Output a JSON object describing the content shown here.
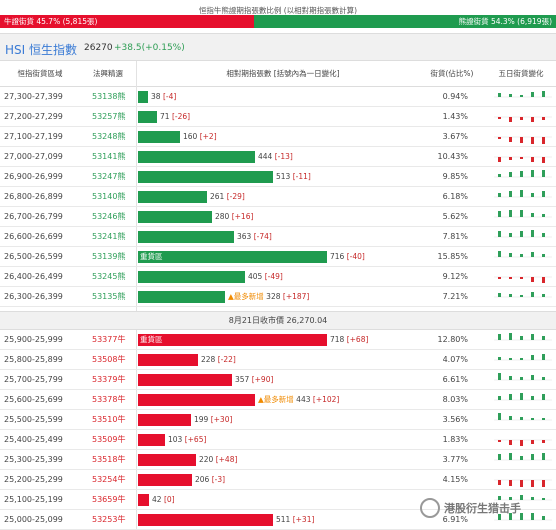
{
  "header": {
    "title": "恒指牛熊證期指張數比例 (以相對期指張數計算)",
    "bull_label": "牛證街貨 45.7% (5,815張)",
    "bear_label": "熊證街貨 54.3% (6,919張)",
    "bull_fraction": 0.457
  },
  "hsi": {
    "title": "HSI 恒生指數",
    "value": "26270",
    "change": "+38.5(+0.15%)"
  },
  "columns": {
    "range": "恒指街貨區域",
    "code": "法興精選",
    "contracts": "相對期指張數 [括號內為一日變化]",
    "share": "街貨(佔比%)",
    "history": "五日街貨變化"
  },
  "close_note": "8月21日收市價 26,270.04",
  "bear_rows": [
    {
      "range": "27,300-27,399",
      "code": "53138熊",
      "value": "38",
      "change": "[-4]",
      "pct": "0.94%",
      "amount": 38
    },
    {
      "range": "27,200-27,299",
      "code": "53257熊",
      "value": "71",
      "change": "[-26]",
      "pct": "1.43%",
      "amount": 71
    },
    {
      "range": "27,100-27,199",
      "code": "53248熊",
      "value": "160",
      "change": "[+2]",
      "pct": "3.67%",
      "amount": 160
    },
    {
      "range": "27,000-27,099",
      "code": "53141熊",
      "value": "444",
      "change": "[-13]",
      "pct": "10.43%",
      "amount": 444
    },
    {
      "range": "26,900-26,999",
      "code": "53247熊",
      "value": "513",
      "change": "[-11]",
      "pct": "9.85%",
      "amount": 513
    },
    {
      "range": "26,800-26,899",
      "code": "53140熊",
      "value": "261",
      "change": "[-29]",
      "pct": "6.18%",
      "amount": 261
    },
    {
      "range": "26,700-26,799",
      "code": "53246熊",
      "value": "280",
      "change": "[+16]",
      "pct": "5.62%",
      "amount": 280
    },
    {
      "range": "26,600-26,699",
      "code": "53241熊",
      "value": "363",
      "change": "[-74]",
      "pct": "7.81%",
      "amount": 363
    },
    {
      "range": "26,500-26,599",
      "code": "53139熊",
      "value": "716",
      "change": "[-40]",
      "pct": "15.85%",
      "amount": 716,
      "tag": "重貨區"
    },
    {
      "range": "26,400-26,499",
      "code": "53245熊",
      "value": "405",
      "change": "[-49]",
      "pct": "9.12%",
      "amount": 405
    },
    {
      "range": "26,300-26,399",
      "code": "53135熊",
      "value": "328",
      "change": "[+187]",
      "pct": "7.21%",
      "amount": 328,
      "warn": "▲最多新增"
    }
  ],
  "bull_rows": [
    {
      "range": "25,900-25,999",
      "code": "53377牛",
      "value": "718",
      "change": "[+68]",
      "pct": "12.80%",
      "amount": 718,
      "tag": "重貨區"
    },
    {
      "range": "25,800-25,899",
      "code": "53508牛",
      "value": "228",
      "change": "[-22]",
      "pct": "4.07%",
      "amount": 228
    },
    {
      "range": "25,700-25,799",
      "code": "53379牛",
      "value": "357",
      "change": "[+90]",
      "pct": "6.61%",
      "amount": 357
    },
    {
      "range": "25,600-25,699",
      "code": "53378牛",
      "value": "443",
      "change": "[+102]",
      "pct": "8.03%",
      "amount": 443,
      "warn": "▲最多新增"
    },
    {
      "range": "25,500-25,599",
      "code": "53510牛",
      "value": "199",
      "change": "[+30]",
      "pct": "3.56%",
      "amount": 199
    },
    {
      "range": "25,400-25,499",
      "code": "53509牛",
      "value": "103",
      "change": "[+65]",
      "pct": "1.83%",
      "amount": 103
    },
    {
      "range": "25,300-25,399",
      "code": "53518牛",
      "value": "220",
      "change": "[+48]",
      "pct": "3.77%",
      "amount": 220
    },
    {
      "range": "25,200-25,299",
      "code": "53254牛",
      "value": "206",
      "change": "[-3]",
      "pct": "4.15%",
      "amount": 206
    },
    {
      "range": "25,100-25,199",
      "code": "53659牛",
      "value": "42",
      "change": "[0]",
      "pct": "",
      "amount": 42
    },
    {
      "range": "25,000-25,099",
      "code": "53253牛",
      "value": "511",
      "change": "[+31]",
      "pct": "6.91%",
      "amount": 511
    }
  ],
  "watermark": "港股衍生猎击手",
  "colors": {
    "bull": "#e60f2d",
    "bear": "#1f9b4f",
    "accent": "#3a7bd5"
  }
}
